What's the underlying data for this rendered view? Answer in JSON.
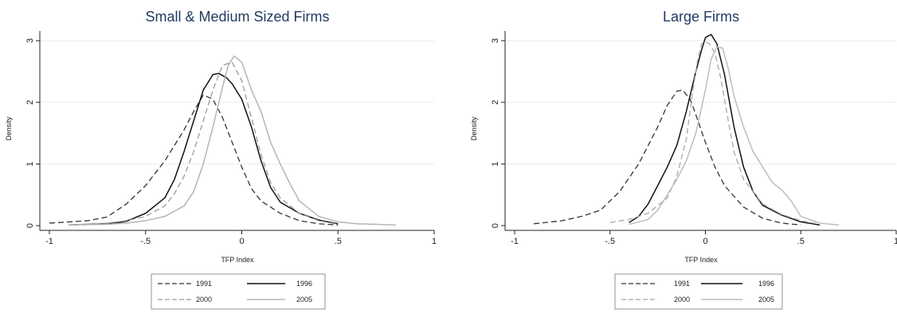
{
  "chart_data": [
    {
      "type": "line",
      "title": "Small & Medium Sized Firms",
      "xlabel": "TFP Index",
      "ylabel": "Density",
      "xlim": [
        -1,
        1
      ],
      "ylim": [
        0,
        3
      ],
      "xticks": [
        {
          "v": -1,
          "label": "-1"
        },
        {
          "v": -0.5,
          "label": "-.5"
        },
        {
          "v": 0,
          "label": "0"
        },
        {
          "v": 0.5,
          "label": ".5"
        },
        {
          "v": 1,
          "label": "1"
        }
      ],
      "yticks": [
        {
          "v": 0,
          "label": "0"
        },
        {
          "v": 1,
          "label": "1"
        },
        {
          "v": 2,
          "label": "2"
        },
        {
          "v": 3,
          "label": "3"
        }
      ],
      "grid": true,
      "legend_position": "bottom",
      "series": [
        {
          "name": "1991",
          "color": "#333333",
          "dash": "dashed",
          "x": [
            -1,
            -0.8,
            -0.7,
            -0.6,
            -0.5,
            -0.4,
            -0.3,
            -0.25,
            -0.2,
            -0.15,
            -0.1,
            -0.05,
            0,
            0.05,
            0.1,
            0.2,
            0.3,
            0.4,
            0.5
          ],
          "y": [
            0.04,
            0.08,
            0.14,
            0.35,
            0.65,
            1.05,
            1.55,
            1.85,
            2.12,
            2.05,
            1.75,
            1.35,
            0.95,
            0.6,
            0.4,
            0.2,
            0.08,
            0.03,
            0.01
          ]
        },
        {
          "name": "1996",
          "color": "#111111",
          "dash": "solid",
          "x": [
            -0.9,
            -0.7,
            -0.6,
            -0.5,
            -0.4,
            -0.35,
            -0.3,
            -0.25,
            -0.2,
            -0.15,
            -0.12,
            -0.08,
            -0.05,
            0,
            0.05,
            0.1,
            0.15,
            0.2,
            0.3,
            0.4,
            0.5
          ],
          "y": [
            0.01,
            0.03,
            0.07,
            0.2,
            0.45,
            0.75,
            1.2,
            1.7,
            2.2,
            2.45,
            2.47,
            2.4,
            2.3,
            2.05,
            1.6,
            1.05,
            0.62,
            0.38,
            0.2,
            0.09,
            0.03
          ]
        },
        {
          "name": "2000",
          "color": "#9a9a9a",
          "dash": "dashed",
          "x": [
            -0.9,
            -0.7,
            -0.6,
            -0.5,
            -0.4,
            -0.35,
            -0.3,
            -0.25,
            -0.2,
            -0.15,
            -0.1,
            -0.05,
            0,
            0.05,
            0.1,
            0.15,
            0.2,
            0.3,
            0.4,
            0.5
          ],
          "y": [
            0.01,
            0.04,
            0.08,
            0.15,
            0.32,
            0.52,
            0.8,
            1.2,
            1.7,
            2.2,
            2.6,
            2.65,
            2.35,
            1.75,
            1.15,
            0.7,
            0.45,
            0.2,
            0.08,
            0.02
          ]
        },
        {
          "name": "2005",
          "color": "#b5b5b5",
          "dash": "solid",
          "x": [
            -0.9,
            -0.7,
            -0.6,
            -0.5,
            -0.4,
            -0.3,
            -0.25,
            -0.2,
            -0.15,
            -0.1,
            -0.07,
            -0.04,
            0,
            0.05,
            0.1,
            0.15,
            0.2,
            0.25,
            0.3,
            0.4,
            0.5,
            0.6,
            0.7,
            0.8
          ],
          "y": [
            0.01,
            0.02,
            0.04,
            0.08,
            0.15,
            0.32,
            0.55,
            1.0,
            1.6,
            2.25,
            2.6,
            2.75,
            2.65,
            2.2,
            1.85,
            1.35,
            1.0,
            0.68,
            0.4,
            0.15,
            0.06,
            0.03,
            0.02,
            0.01
          ]
        }
      ]
    },
    {
      "type": "line",
      "title": "Large Firms",
      "xlabel": "TFP Index",
      "ylabel": "Density",
      "xlim": [
        -1,
        1
      ],
      "ylim": [
        0,
        3
      ],
      "xticks": [
        {
          "v": -1,
          "label": "-1"
        },
        {
          "v": -0.5,
          "label": "-.5"
        },
        {
          "v": 0,
          "label": "0"
        },
        {
          "v": 0.5,
          "label": ".5"
        },
        {
          "v": 1,
          "label": "1"
        }
      ],
      "yticks": [
        {
          "v": 0,
          "label": "0"
        },
        {
          "v": 1,
          "label": "1"
        },
        {
          "v": 2,
          "label": "2"
        },
        {
          "v": 3,
          "label": "3"
        }
      ],
      "grid": true,
      "legend_position": "bottom",
      "series": [
        {
          "name": "1991",
          "color": "#333333",
          "dash": "dashed",
          "x": [
            -0.9,
            -0.75,
            -0.65,
            -0.55,
            -0.45,
            -0.35,
            -0.25,
            -0.2,
            -0.15,
            -0.12,
            -0.08,
            -0.05,
            0,
            0.05,
            0.1,
            0.2,
            0.3,
            0.4,
            0.5
          ],
          "y": [
            0.03,
            0.08,
            0.15,
            0.25,
            0.55,
            1.0,
            1.6,
            1.95,
            2.18,
            2.2,
            2.05,
            1.8,
            1.35,
            0.95,
            0.65,
            0.3,
            0.12,
            0.04,
            0.01
          ]
        },
        {
          "name": "1996",
          "color": "#111111",
          "dash": "solid",
          "x": [
            -0.4,
            -0.35,
            -0.3,
            -0.25,
            -0.2,
            -0.15,
            -0.1,
            -0.05,
            -0.02,
            0,
            0.03,
            0.06,
            0.1,
            0.15,
            0.2,
            0.25,
            0.3,
            0.4,
            0.5,
            0.6
          ],
          "y": [
            0.05,
            0.15,
            0.35,
            0.65,
            0.95,
            1.3,
            1.85,
            2.5,
            2.85,
            3.05,
            3.1,
            2.95,
            2.45,
            1.6,
            0.95,
            0.55,
            0.33,
            0.17,
            0.06,
            0.01
          ]
        },
        {
          "name": "2000",
          "color": "#a8a8a8",
          "dash": "dashed",
          "x": [
            -0.5,
            -0.4,
            -0.3,
            -0.2,
            -0.15,
            -0.1,
            -0.07,
            -0.04,
            -0.02,
            0,
            0.02,
            0.05,
            0.08,
            0.12,
            0.15,
            0.2,
            0.3,
            0.4,
            0.5,
            0.6
          ],
          "y": [
            0.05,
            0.1,
            0.2,
            0.45,
            0.8,
            1.4,
            2.1,
            2.7,
            2.95,
            2.98,
            2.95,
            2.8,
            2.4,
            1.7,
            1.2,
            0.75,
            0.35,
            0.18,
            0.08,
            0.02
          ]
        },
        {
          "name": "2005",
          "color": "#bdbdbd",
          "dash": "solid",
          "x": [
            -0.4,
            -0.3,
            -0.25,
            -0.2,
            -0.15,
            -0.1,
            -0.05,
            0,
            0.03,
            0.06,
            0.09,
            0.12,
            0.15,
            0.2,
            0.25,
            0.3,
            0.35,
            0.4,
            0.45,
            0.5,
            0.6,
            0.7
          ],
          "y": [
            0.02,
            0.1,
            0.25,
            0.5,
            0.75,
            1.05,
            1.5,
            2.2,
            2.7,
            2.9,
            2.88,
            2.55,
            2.1,
            1.6,
            1.2,
            0.95,
            0.7,
            0.58,
            0.4,
            0.15,
            0.04,
            0.01
          ]
        }
      ]
    }
  ]
}
